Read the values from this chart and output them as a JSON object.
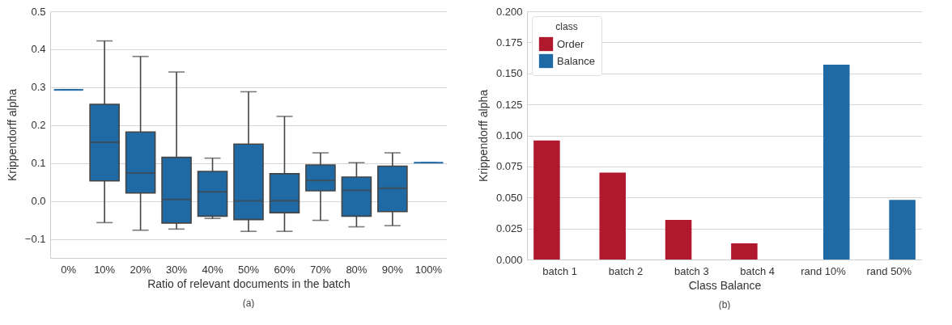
{
  "chart_data": [
    {
      "type": "box",
      "xlabel": "Ratio of relevant documents in the batch",
      "ylabel": "Krippendorff alpha",
      "annotations": [
        "(a)"
      ],
      "categories": [
        "0%",
        "10%",
        "20%",
        "30%",
        "40%",
        "50%",
        "60%",
        "70%",
        "80%",
        "90%",
        "100%"
      ],
      "series": [
        {
          "color": "#1f6aa5",
          "boxes": [
            {
              "low": 0.293,
              "q1": 0.293,
              "median": 0.293,
              "q3": 0.293,
              "high": 0.293
            },
            {
              "low": -0.057,
              "q1": 0.053,
              "median": 0.155,
              "q3": 0.255,
              "high": 0.422
            },
            {
              "low": -0.077,
              "q1": 0.021,
              "median": 0.074,
              "q3": 0.182,
              "high": 0.381
            },
            {
              "low": -0.074,
              "q1": -0.058,
              "median": 0.004,
              "q3": 0.115,
              "high": 0.34
            },
            {
              "low": -0.046,
              "q1": -0.04,
              "median": 0.024,
              "q3": 0.078,
              "high": 0.113
            },
            {
              "low": -0.08,
              "q1": -0.049,
              "median": 0.0,
              "q3": 0.15,
              "high": 0.288
            },
            {
              "low": -0.08,
              "q1": -0.031,
              "median": 0.001,
              "q3": 0.072,
              "high": 0.223
            },
            {
              "low": -0.051,
              "q1": 0.027,
              "median": 0.054,
              "q3": 0.095,
              "high": 0.127
            },
            {
              "low": -0.068,
              "q1": -0.04,
              "median": 0.028,
              "q3": 0.063,
              "high": 0.101
            },
            {
              "low": -0.065,
              "q1": -0.028,
              "median": 0.034,
              "q3": 0.092,
              "high": 0.127
            },
            {
              "low": 0.101,
              "q1": 0.101,
              "median": 0.101,
              "q3": 0.101,
              "high": 0.101
            }
          ]
        }
      ],
      "ylim": [
        -0.15,
        0.5
      ],
      "yticks": [
        {
          "value": -0.1,
          "label": "−0.1"
        },
        {
          "value": 0,
          "label": "0.0"
        },
        0.1,
        0.2,
        0.3,
        0.4,
        0.5
      ],
      "grid": "y"
    },
    {
      "type": "bar",
      "xlabel": "Class Balance",
      "ylabel": "Krippendorff alpha",
      "annotations": [
        "(b)"
      ],
      "legend_title": "class",
      "legend": "top left",
      "categories": [
        "batch 1",
        "batch 2",
        "batch 3",
        "batch 4",
        "rand 10%",
        "rand 50%"
      ],
      "series": [
        {
          "name": "Order",
          "color": "#b0182d",
          "values": [
            0.096,
            0.07,
            0.032,
            0.013,
            null,
            null
          ]
        },
        {
          "name": "Balance",
          "color": "#1f6aa5",
          "values": [
            null,
            null,
            null,
            null,
            0.157,
            0.048
          ]
        }
      ],
      "ylim": [
        0,
        0.2
      ],
      "yticks": [
        {
          "value": 0,
          "label": "0.000"
        },
        {
          "value": 0.025,
          "label": "0.025"
        },
        {
          "value": 0.05,
          "label": "0.050"
        },
        {
          "value": 0.075,
          "label": "0.075"
        },
        {
          "value": 0.1,
          "label": "0.100"
        },
        {
          "value": 0.125,
          "label": "0.125"
        },
        {
          "value": 0.15,
          "label": "0.150"
        },
        {
          "value": 0.175,
          "label": "0.175"
        },
        {
          "value": 0.2,
          "label": "0.200"
        }
      ],
      "grid": "y"
    }
  ]
}
